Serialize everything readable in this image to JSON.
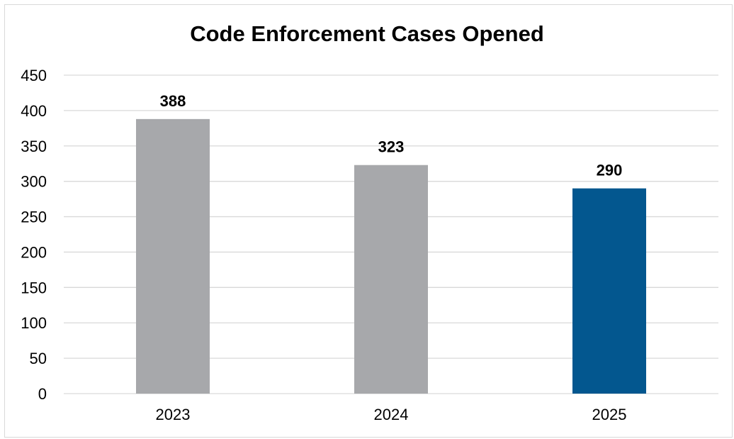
{
  "chart_data": {
    "type": "bar",
    "title": "Code Enforcement Cases Opened",
    "xlabel": "",
    "ylabel": "",
    "categories": [
      "2023",
      "2024",
      "2025"
    ],
    "values": [
      388,
      323,
      290
    ],
    "data_labels": [
      "388",
      "323",
      "290"
    ],
    "yticks": [
      0,
      50,
      100,
      150,
      200,
      250,
      300,
      350,
      400,
      450
    ],
    "ylim": [
      0,
      450
    ],
    "grid": true,
    "legend": "none",
    "colors": [
      "#a7a8ab",
      "#a7a8ab",
      "#03578f"
    ],
    "gridline_color": "#d9d9d9"
  }
}
